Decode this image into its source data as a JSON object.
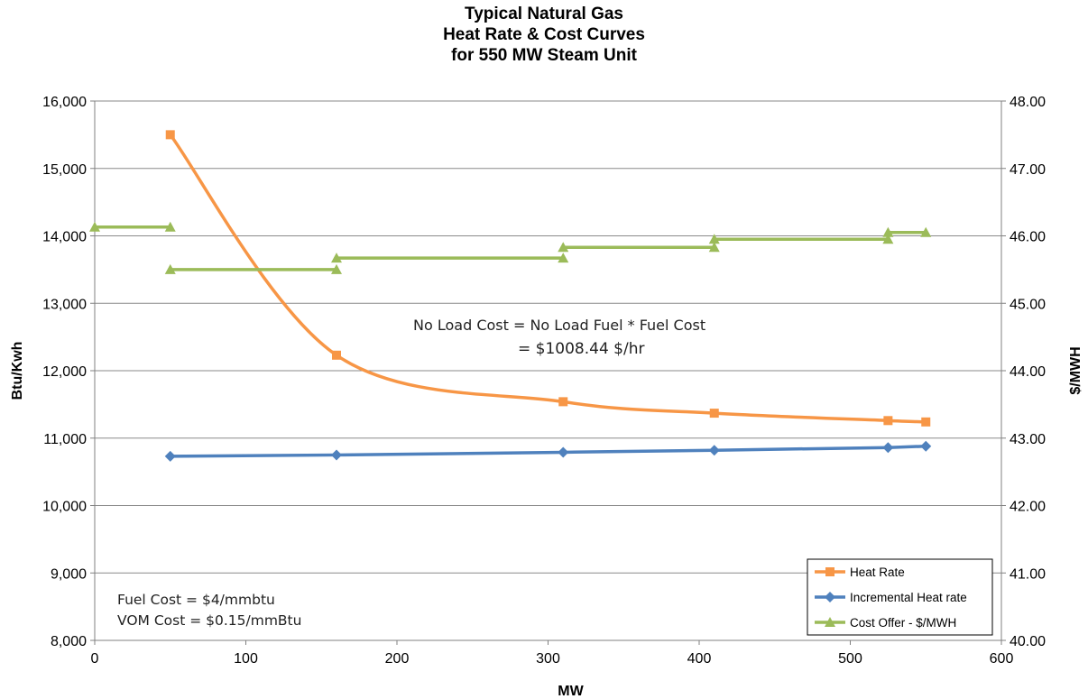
{
  "chart_data": {
    "type": "line",
    "title_lines": [
      "Typical Natural Gas",
      "Heat Rate & Cost Curves",
      "for 550 MW Steam Unit"
    ],
    "xlabel": "MW",
    "ylabel": "Btu/Kwh",
    "y2label": "$/MWH",
    "xlim": [
      0,
      600
    ],
    "ylim": [
      8000,
      16000
    ],
    "y2lim": [
      40.0,
      48.0
    ],
    "x_ticks": [
      "0",
      "100",
      "200",
      "300",
      "400",
      "500",
      "600"
    ],
    "y_ticks": [
      "8,000",
      "9,000",
      "10,000",
      "11,000",
      "12,000",
      "13,000",
      "14,000",
      "15,000",
      "16,000"
    ],
    "y2_ticks": [
      "40.00",
      "41.00",
      "42.00",
      "43.00",
      "44.00",
      "45.00",
      "46.00",
      "47.00",
      "48.00"
    ],
    "grid": "horizontal",
    "legend_position": "bottom-right",
    "series": [
      {
        "name": "Heat Rate",
        "axis": "left",
        "color": "#f79646",
        "marker": "square",
        "smooth": true,
        "x": [
          50,
          160,
          310,
          410,
          525,
          550
        ],
        "y": [
          15500,
          12230,
          11540,
          11370,
          11260,
          11240
        ]
      },
      {
        "name": "Incremental Heat rate",
        "axis": "left",
        "color": "#4f81bd",
        "marker": "diamond",
        "smooth": false,
        "x": [
          50,
          160,
          310,
          410,
          525,
          550
        ],
        "y": [
          10730,
          10750,
          10790,
          10820,
          10860,
          10880
        ]
      },
      {
        "name": "Cost Offer - $/MWH",
        "axis": "right",
        "color": "#9bbb59",
        "marker": "triangle",
        "step_segments": [
          {
            "x": [
              0,
              50
            ],
            "y": [
              46.13,
              46.13
            ]
          },
          {
            "x": [
              50,
              160
            ],
            "y": [
              45.5,
              45.5
            ]
          },
          {
            "x": [
              160,
              310
            ],
            "y": [
              45.67,
              45.67
            ]
          },
          {
            "x": [
              310,
              410
            ],
            "y": [
              45.83,
              45.83
            ]
          },
          {
            "x": [
              410,
              525
            ],
            "y": [
              45.95,
              45.95
            ]
          },
          {
            "x": [
              525,
              550
            ],
            "y": [
              46.05,
              46.05
            ]
          }
        ]
      }
    ],
    "annotations": {
      "no_load_line1": "No Load Cost = No Load Fuel * Fuel Cost",
      "no_load_line2": "= $1008.44 $/hr",
      "fuel_cost": "Fuel Cost = $4/mmbtu",
      "vom_cost": "VOM Cost = $0.15/mmBtu"
    }
  }
}
